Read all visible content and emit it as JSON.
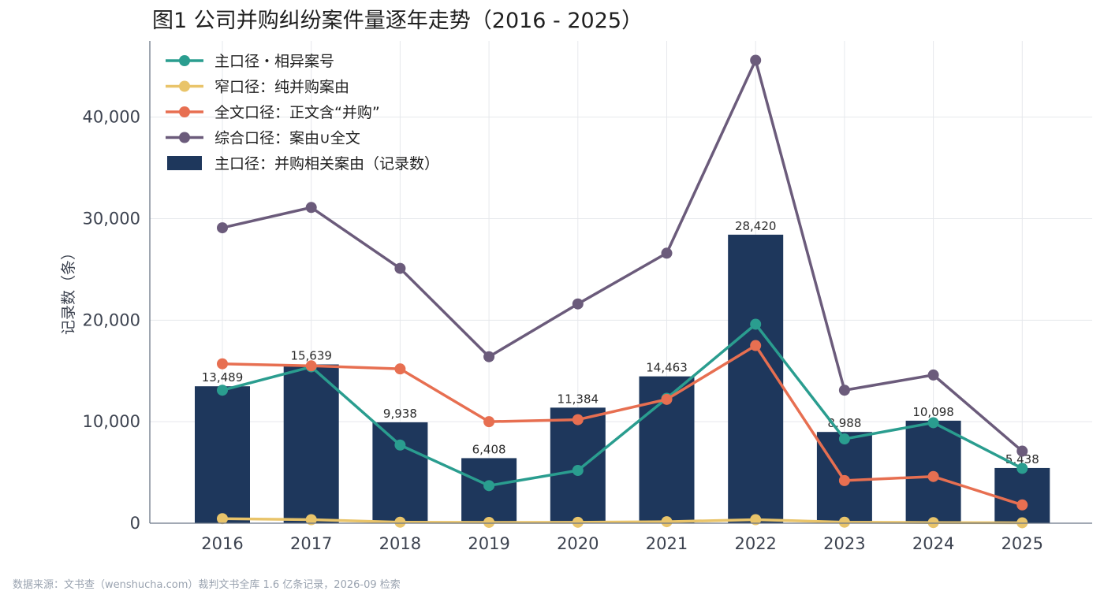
{
  "chart_data": {
    "type": "bar+line",
    "title": "图1  公司并购纠纷案件量逐年走势（2016 - 2025）",
    "ylabel": "记录数（条）",
    "xlabel": "",
    "categories": [
      "2016",
      "2017",
      "2018",
      "2019",
      "2020",
      "2021",
      "2022",
      "2023",
      "2024",
      "2025"
    ],
    "ylim": [
      0,
      47500
    ],
    "yticks": [
      0,
      10000,
      20000,
      30000,
      40000
    ],
    "ytick_labels": [
      "0",
      "10,000",
      "20,000",
      "30,000",
      "40,000"
    ],
    "grid": true,
    "legend_position": "top-left",
    "bars": {
      "name": "主口径：并购相关案由（记录数）",
      "color": "#1e375c",
      "values": [
        13489,
        15639,
        9938,
        6408,
        11384,
        14463,
        28420,
        8988,
        10098,
        5438
      ],
      "labels": [
        "13,489",
        "15,639",
        "9,938",
        "6,408",
        "11,384",
        "14,463",
        "28,420",
        "8,988",
        "10,098",
        "5,438"
      ]
    },
    "series": [
      {
        "name": "主口径・相异案号",
        "color": "#2a9d8f",
        "values": [
          13100,
          15400,
          7700,
          3700,
          5200,
          12300,
          19600,
          8300,
          9900,
          5400
        ]
      },
      {
        "name": "窄口径：纯并购案由",
        "color": "#e9c46a",
        "values": [
          450,
          350,
          100,
          80,
          90,
          150,
          350,
          100,
          60,
          40
        ]
      },
      {
        "name": "全文口径：正文含“并购”",
        "color": "#e76f51",
        "values": [
          15700,
          15500,
          15200,
          10000,
          10200,
          12200,
          17500,
          4200,
          4600,
          1800
        ]
      },
      {
        "name": "综合口径：案由∪全文",
        "color": "#6b5b7b",
        "values": [
          29100,
          31100,
          25100,
          16400,
          21600,
          26600,
          45600,
          13100,
          14600,
          7100
        ]
      }
    ]
  },
  "source_note": "数据来源：文书查（wenshucha.com）裁判文书全库 1.6 亿条记录，2026-09 检索"
}
